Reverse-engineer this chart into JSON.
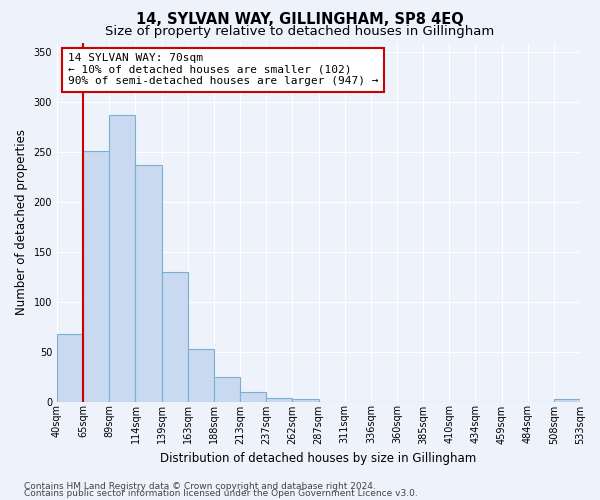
{
  "title": "14, SYLVAN WAY, GILLINGHAM, SP8 4EQ",
  "subtitle": "Size of property relative to detached houses in Gillingham",
  "xlabel": "Distribution of detached houses by size in Gillingham",
  "ylabel": "Number of detached properties",
  "bar_values": [
    68,
    251,
    287,
    237,
    130,
    53,
    25,
    10,
    4,
    3,
    0,
    0,
    0,
    0,
    0,
    0,
    0,
    0,
    0,
    3
  ],
  "bar_labels": [
    "40sqm",
    "65sqm",
    "89sqm",
    "114sqm",
    "139sqm",
    "163sqm",
    "188sqm",
    "213sqm",
    "237sqm",
    "262sqm",
    "287sqm",
    "311sqm",
    "336sqm",
    "360sqm",
    "385sqm",
    "410sqm",
    "434sqm",
    "459sqm",
    "484sqm",
    "508sqm",
    "533sqm"
  ],
  "bar_color": "#c9d9ef",
  "bar_edge_color": "#7bafd4",
  "vline_color": "#cc0000",
  "annotation_text": "14 SYLVAN WAY: 70sqm\n← 10% of detached houses are smaller (102)\n90% of semi-detached houses are larger (947) →",
  "annotation_box_color": "#ffffff",
  "annotation_box_edge": "#cc0000",
  "ylim": [
    0,
    360
  ],
  "yticks": [
    0,
    50,
    100,
    150,
    200,
    250,
    300,
    350
  ],
  "background_color": "#eef2fa",
  "grid_color": "#ffffff",
  "footer_line1": "Contains HM Land Registry data © Crown copyright and database right 2024.",
  "footer_line2": "Contains public sector information licensed under the Open Government Licence v3.0.",
  "title_fontsize": 10.5,
  "subtitle_fontsize": 9.5,
  "xlabel_fontsize": 8.5,
  "ylabel_fontsize": 8.5,
  "tick_fontsize": 7,
  "annotation_fontsize": 8,
  "footer_fontsize": 6.5
}
